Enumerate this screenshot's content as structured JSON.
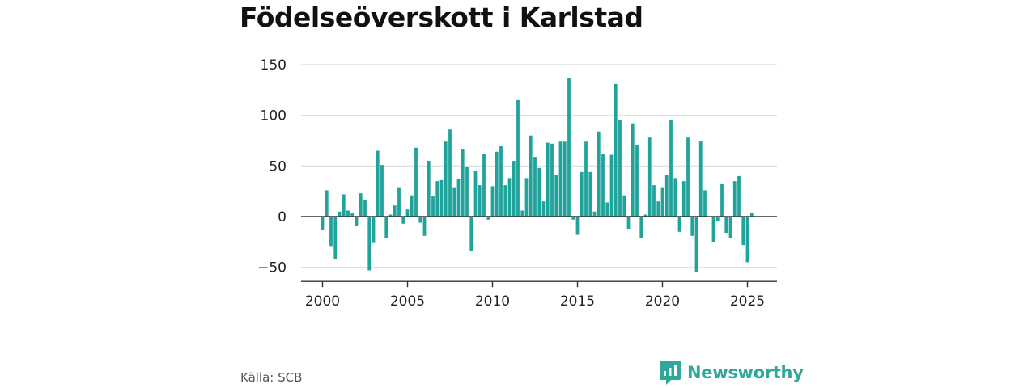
{
  "header": {
    "title": "Födelseöverskott i Karlstad"
  },
  "footer": {
    "source": "Källa: SCB",
    "brand": "Newsworthy"
  },
  "colors": {
    "bar": "#20a39a",
    "grid": "#dcdcdc",
    "zero_line": "#333333",
    "brand": "#2ea898"
  },
  "chart_data": {
    "type": "bar",
    "title": "Födelseöverskott i Karlstad",
    "xlabel": "",
    "ylabel": "",
    "x_start": 2000,
    "x_step": 0.25,
    "values": [
      -13,
      26,
      -29,
      -42,
      5,
      22,
      6,
      4,
      -9,
      23,
      16,
      -53,
      -26,
      65,
      51,
      -21,
      2,
      11,
      29,
      -7,
      7,
      21,
      68,
      -6,
      -19,
      55,
      20,
      35,
      36,
      74,
      86,
      29,
      37,
      67,
      49,
      -34,
      45,
      31,
      62,
      -3,
      30,
      64,
      70,
      31,
      38,
      55,
      115,
      6,
      38,
      80,
      59,
      48,
      15,
      73,
      72,
      41,
      74,
      74,
      137,
      -3,
      -18,
      44,
      74,
      44,
      5,
      84,
      62,
      14,
      61,
      131,
      95,
      21,
      -12,
      92,
      71,
      -21,
      2,
      78,
      31,
      15,
      29,
      41,
      95,
      38,
      -15,
      35,
      78,
      -19,
      -55,
      75,
      26,
      0,
      -25,
      -4,
      32,
      -16,
      -21,
      35,
      40,
      -28,
      -45,
      4
    ],
    "ylim": [
      -64,
      150
    ],
    "yticks": [
      150,
      100,
      50,
      0,
      -50
    ],
    "ytick_labels": [
      "150",
      "100",
      "50",
      "0",
      "−50"
    ],
    "xticks": [
      2000,
      2005,
      2010,
      2015,
      2020,
      2025
    ],
    "xtick_labels": [
      "2000",
      "2005",
      "2010",
      "2015",
      "2020",
      "2025"
    ],
    "grid": true,
    "legend": "none"
  }
}
